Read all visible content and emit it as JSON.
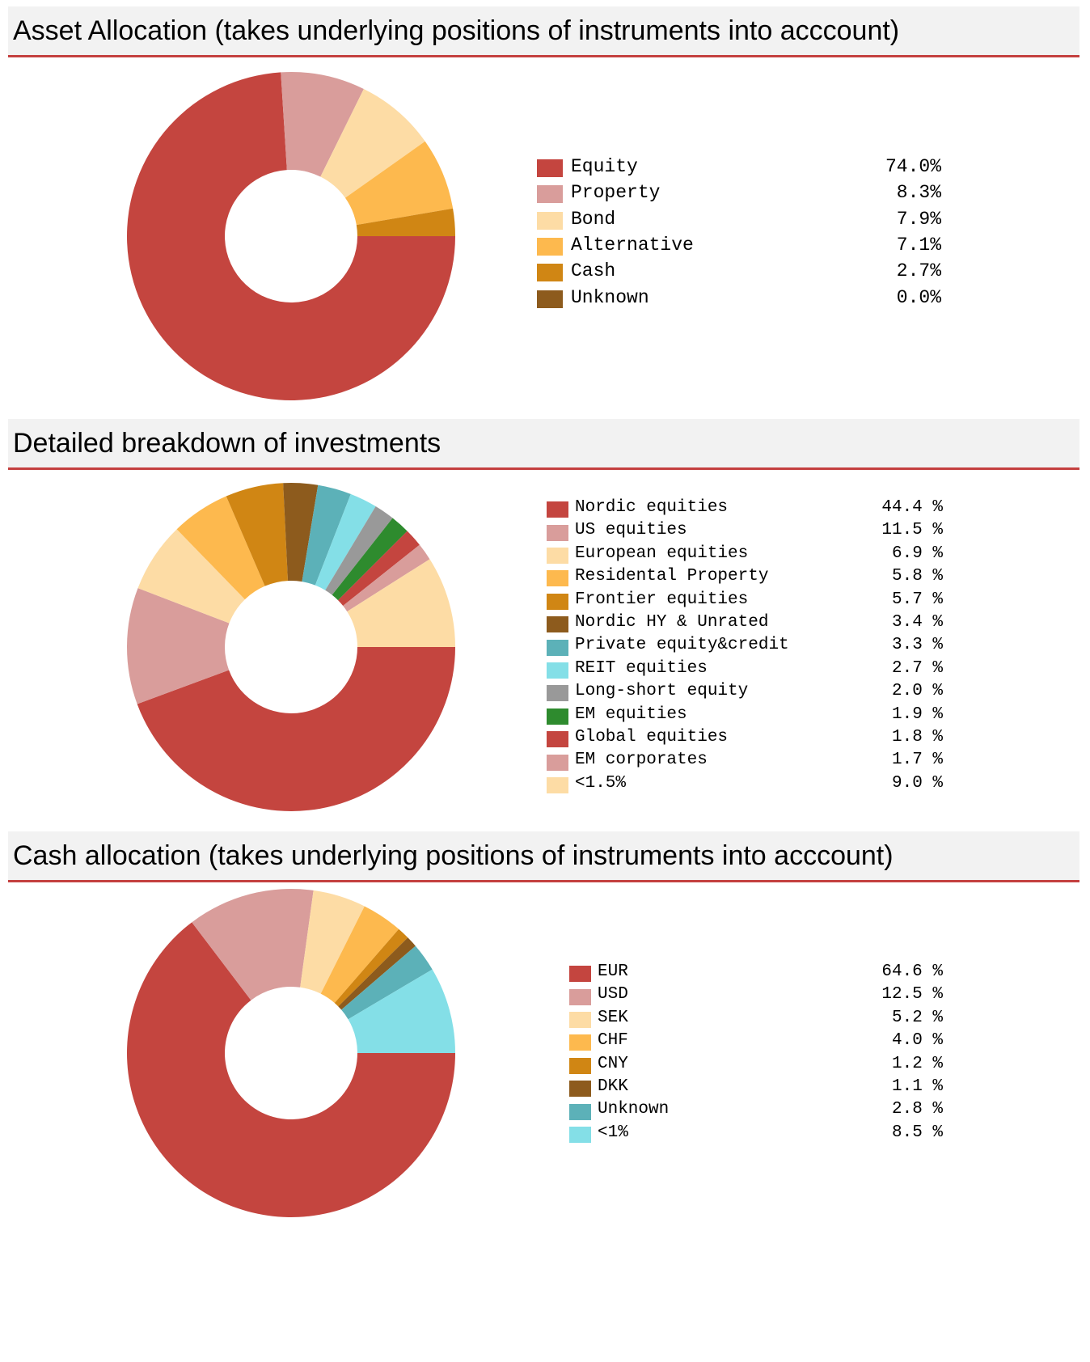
{
  "chart_data": [
    {
      "type": "pie",
      "title": "Asset Allocation (takes underlying positions of instruments into acccount)",
      "categories": [
        "Equity",
        "Property",
        "Bond",
        "Alternative",
        "Cash",
        "Unknown"
      ],
      "values": [
        74.0,
        8.3,
        7.9,
        7.1,
        2.7,
        0.0
      ],
      "value_labels": [
        "74.0%",
        "8.3%",
        "7.9%",
        "7.1%",
        "2.7%",
        "0.0%"
      ],
      "colors": [
        "#c4453f",
        "#d99d9b",
        "#fddca5",
        "#fdb94e",
        "#d08614",
        "#8d5b1d"
      ],
      "legend_position": "right"
    },
    {
      "type": "pie",
      "title": "Detailed breakdown of investments",
      "categories": [
        "Nordic equities",
        "US equities",
        "European equities",
        "Residental Property",
        "Frontier equities",
        "Nordic HY & Unrated",
        "Private equity&credit",
        "REIT equities",
        "Long-short equity",
        "EM equities",
        "Global equities",
        "EM corporates",
        "<1.5%"
      ],
      "values": [
        44.4,
        11.5,
        6.9,
        5.8,
        5.7,
        3.4,
        3.3,
        2.7,
        2.0,
        1.9,
        1.8,
        1.7,
        9.0
      ],
      "value_labels": [
        "44.4 %",
        "11.5 %",
        "6.9 %",
        "5.8 %",
        "5.7 %",
        "3.4 %",
        "3.3 %",
        "2.7 %",
        "2.0 %",
        "1.9 %",
        "1.8 %",
        "1.7 %",
        "9.0 %"
      ],
      "colors": [
        "#c4453f",
        "#d99d9b",
        "#fddca5",
        "#fdb94e",
        "#d08614",
        "#8d5b1d",
        "#5cb1b8",
        "#84dfe7",
        "#999999",
        "#2e8b2e",
        "#c4453f",
        "#d99d9b",
        "#fddca5"
      ],
      "legend_position": "right"
    },
    {
      "type": "pie",
      "title": "Cash allocation (takes underlying positions of instruments into acccount)",
      "categories": [
        "EUR",
        "USD",
        "SEK",
        "CHF",
        "CNY",
        "DKK",
        "Unknown",
        "<1%"
      ],
      "values": [
        64.6,
        12.5,
        5.2,
        4.0,
        1.2,
        1.1,
        2.8,
        8.5
      ],
      "value_labels": [
        "64.6 %",
        "12.5 %",
        "5.2 %",
        "4.0 %",
        "1.2 %",
        "1.1 %",
        "2.8 %",
        "8.5 %"
      ],
      "colors": [
        "#c4453f",
        "#d99d9b",
        "#fddca5",
        "#fdb94e",
        "#d08614",
        "#8d5b1d",
        "#5cb1b8",
        "#84dfe7"
      ],
      "legend_position": "right"
    }
  ]
}
